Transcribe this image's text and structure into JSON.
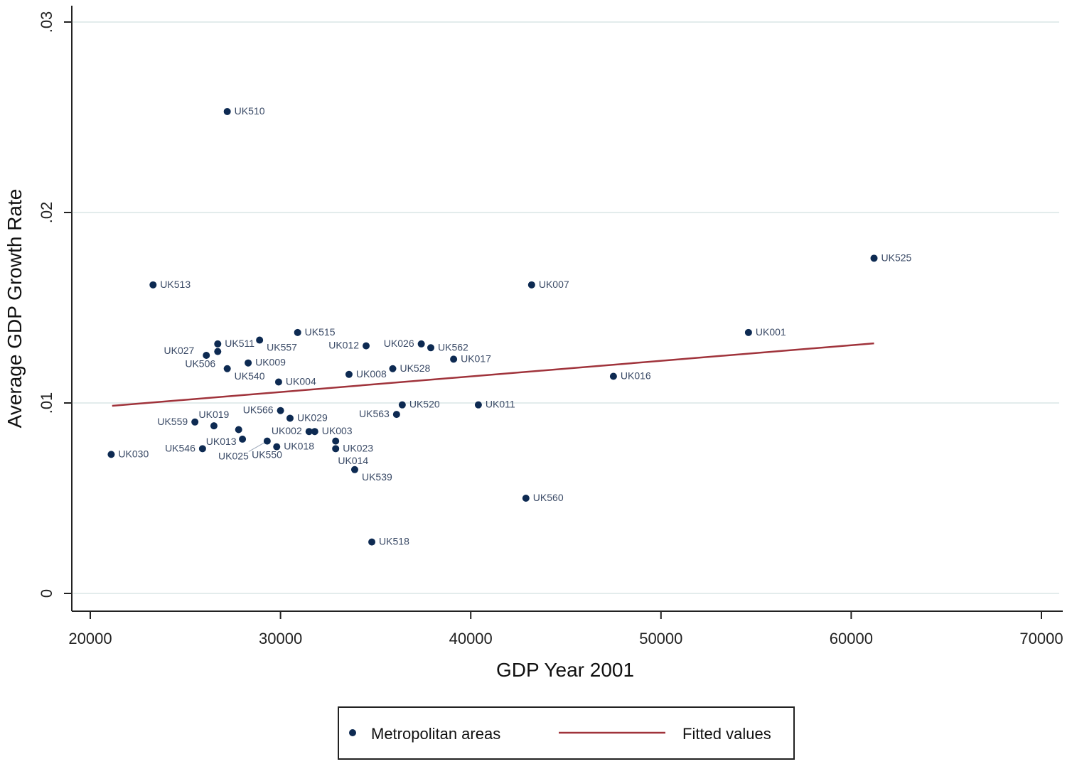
{
  "chart_data": {
    "type": "scatter",
    "xlabel": "GDP Year 2001",
    "ylabel": "Average GDP Growth Rate",
    "xlim": [
      19000,
      71000
    ],
    "ylim": [
      -0.001,
      0.031
    ],
    "xticks": [
      20000,
      30000,
      40000,
      50000,
      60000,
      70000
    ],
    "xtick_labels": [
      "20000",
      "30000",
      "40000",
      "50000",
      "60000",
      "70000"
    ],
    "yticks": [
      0,
      0.01,
      0.02,
      0.03
    ],
    "ytick_labels": [
      "0",
      ".01",
      ".02",
      ".03"
    ],
    "grid": "horizontal",
    "legend_position": "bottom",
    "colors": {
      "points": "#0d2a52",
      "fit": "#a0333b"
    },
    "series": [
      {
        "name": "Metropolitan areas",
        "points": [
          {
            "label": "UK510",
            "x": 27200,
            "y": 0.0253
          },
          {
            "label": "UK513",
            "x": 23300,
            "y": 0.0162
          },
          {
            "label": "UK525",
            "x": 61200,
            "y": 0.0176
          },
          {
            "label": "UK007",
            "x": 43200,
            "y": 0.0162
          },
          {
            "label": "UK001",
            "x": 54600,
            "y": 0.0137
          },
          {
            "label": "UK016",
            "x": 47500,
            "y": 0.0114
          },
          {
            "label": "UK515",
            "x": 30900,
            "y": 0.0137
          },
          {
            "label": "UK557",
            "x": 28900,
            "y": 0.0133
          },
          {
            "label": "UK511",
            "x": 26700,
            "y": 0.0131
          },
          {
            "label": "UK506",
            "x": 26700,
            "y": 0.0127
          },
          {
            "label": "UK027",
            "x": 26100,
            "y": 0.0125
          },
          {
            "label": "UK009",
            "x": 28300,
            "y": 0.0121
          },
          {
            "label": "UK540",
            "x": 27200,
            "y": 0.0118
          },
          {
            "label": "UK004",
            "x": 29900,
            "y": 0.0111
          },
          {
            "label": "UK012",
            "x": 34500,
            "y": 0.013
          },
          {
            "label": "UK026",
            "x": 37400,
            "y": 0.0131
          },
          {
            "label": "UK562",
            "x": 37900,
            "y": 0.0129
          },
          {
            "label": "UK017",
            "x": 39100,
            "y": 0.0123
          },
          {
            "label": "UK008",
            "x": 33600,
            "y": 0.0115
          },
          {
            "label": "UK528",
            "x": 35900,
            "y": 0.0118
          },
          {
            "label": "UK520",
            "x": 36400,
            "y": 0.0099
          },
          {
            "label": "UK563",
            "x": 36100,
            "y": 0.0094
          },
          {
            "label": "UK011",
            "x": 40400,
            "y": 0.0099
          },
          {
            "label": "UK566",
            "x": 30000,
            "y": 0.0096
          },
          {
            "label": "UK029",
            "x": 30500,
            "y": 0.0092
          },
          {
            "label": "UK559",
            "x": 25500,
            "y": 0.009
          },
          {
            "label": "UK019",
            "x": 26500,
            "y": 0.0088
          },
          {
            "label": "UK013",
            "x": 27800,
            "y": 0.0086
          },
          {
            "label": "UK002",
            "x": 31500,
            "y": 0.0085
          },
          {
            "label": "UK003",
            "x": 31800,
            "y": 0.0085
          },
          {
            "label": "UK550",
            "x": 28000,
            "y": 0.0081
          },
          {
            "label": "UK025",
            "x": 29300,
            "y": 0.008
          },
          {
            "label": "UK018",
            "x": 29800,
            "y": 0.0077
          },
          {
            "label": "UK023",
            "x": 32900,
            "y": 0.008
          },
          {
            "label": "UK014",
            "x": 32900,
            "y": 0.0076
          },
          {
            "label": "UK546",
            "x": 25900,
            "y": 0.0076
          },
          {
            "label": "UK030",
            "x": 21100,
            "y": 0.0073
          },
          {
            "label": "UK539",
            "x": 33900,
            "y": 0.0065
          },
          {
            "label": "UK560",
            "x": 42900,
            "y": 0.005
          },
          {
            "label": "UK518",
            "x": 34800,
            "y": 0.0027
          }
        ]
      },
      {
        "name": "Fitted values",
        "type": "line",
        "points": [
          {
            "x": 21150,
            "y": 0.00985
          },
          {
            "x": 61200,
            "y": 0.01313
          }
        ]
      }
    ]
  }
}
